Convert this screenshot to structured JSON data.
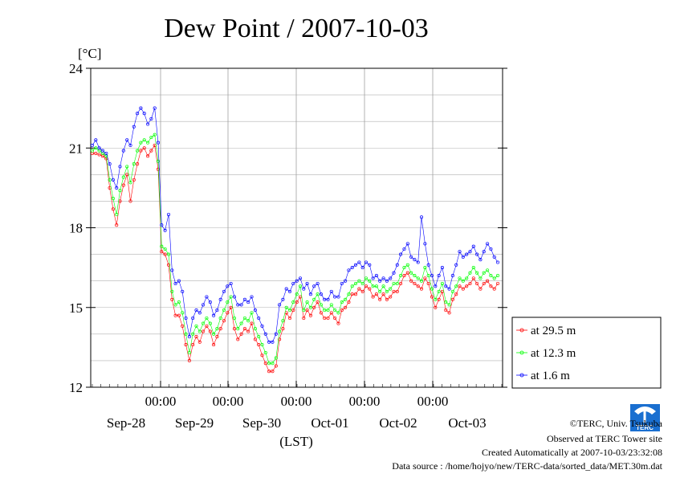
{
  "chart_data": {
    "type": "line",
    "title": "Dew Point / 2007-10-03",
    "ylabel": "[°C]",
    "xlabel": "(LST)",
    "ylim": [
      12,
      24
    ],
    "y_ticks": [
      12,
      15,
      18,
      21,
      24
    ],
    "x_time_labels": [
      "00:00",
      "00:00",
      "00:00",
      "00:00",
      "00:00"
    ],
    "x_date_labels": [
      "Sep-28",
      "Sep-29",
      "Sep-30",
      "Oct-01",
      "Oct-02",
      "Oct-03"
    ],
    "grid": true,
    "legend_placement": "right",
    "series": [
      {
        "name": "at 29.5 m",
        "color": "#ff0000",
        "values": [
          20.8,
          20.8,
          20.75,
          20.7,
          20.6,
          19.5,
          18.7,
          18.1,
          19.0,
          19.6,
          20.0,
          19.0,
          19.8,
          20.4,
          20.9,
          21.0,
          20.7,
          20.9,
          21.1,
          20.2,
          17.1,
          17.0,
          16.6,
          15.3,
          14.7,
          14.7,
          14.3,
          13.6,
          13.0,
          13.6,
          13.9,
          13.7,
          14.1,
          14.3,
          14.1,
          13.6,
          13.9,
          14.2,
          14.5,
          14.8,
          15.0,
          14.2,
          13.8,
          14.0,
          14.2,
          14.1,
          14.4,
          13.8,
          13.6,
          13.2,
          12.9,
          12.6,
          12.6,
          12.8,
          13.8,
          14.2,
          14.8,
          14.6,
          14.9,
          15.2,
          15.4,
          14.6,
          14.9,
          14.7,
          15.0,
          15.2,
          14.8,
          14.6,
          14.6,
          14.8,
          14.6,
          14.4,
          14.9,
          15.0,
          15.2,
          15.5,
          15.5,
          15.7,
          15.6,
          15.8,
          15.7,
          15.4,
          15.5,
          15.3,
          15.5,
          15.3,
          15.4,
          15.6,
          15.6,
          15.9,
          16.2,
          16.3,
          16.0,
          15.9,
          15.8,
          15.7,
          16.1,
          15.9,
          15.4,
          15.0,
          15.3,
          15.6,
          14.9,
          14.8,
          15.3,
          15.5,
          15.8,
          15.7,
          15.8,
          15.9,
          16.1,
          15.9,
          15.7,
          15.9,
          16.0,
          15.8,
          15.7,
          15.9
        ]
      },
      {
        "name": "at 12.3 m",
        "color": "#00ff00",
        "values": [
          20.9,
          21.0,
          20.9,
          20.8,
          20.7,
          19.8,
          19.1,
          18.5,
          19.4,
          19.9,
          20.3,
          19.7,
          20.4,
          20.9,
          21.2,
          21.3,
          21.2,
          21.4,
          21.5,
          20.5,
          17.3,
          17.2,
          17.0,
          15.6,
          15.1,
          15.2,
          14.8,
          14.0,
          13.3,
          14.0,
          14.3,
          14.1,
          14.4,
          14.6,
          14.4,
          14.0,
          14.2,
          14.6,
          14.9,
          15.2,
          15.4,
          14.6,
          14.2,
          14.4,
          14.6,
          14.5,
          14.8,
          14.2,
          13.9,
          13.6,
          13.3,
          12.9,
          12.9,
          13.1,
          14.1,
          14.5,
          15.0,
          14.9,
          15.2,
          15.5,
          15.8,
          14.9,
          15.2,
          15.0,
          15.3,
          15.5,
          15.1,
          14.9,
          14.9,
          15.1,
          14.9,
          14.8,
          15.2,
          15.3,
          15.5,
          15.8,
          15.9,
          16.0,
          15.9,
          16.1,
          16.0,
          15.8,
          15.8,
          15.6,
          15.8,
          15.6,
          15.7,
          15.9,
          15.9,
          16.2,
          16.5,
          16.6,
          16.3,
          16.2,
          16.1,
          16.0,
          16.5,
          16.2,
          15.7,
          15.3,
          15.6,
          15.9,
          15.2,
          15.1,
          15.6,
          15.8,
          16.1,
          16.0,
          16.1,
          16.3,
          16.5,
          16.3,
          16.1,
          16.3,
          16.4,
          16.2,
          16.1,
          16.2
        ]
      },
      {
        "name": "at 1.6 m",
        "color": "#0000ff",
        "values": [
          21.1,
          21.3,
          21.0,
          20.9,
          20.8,
          20.4,
          19.8,
          19.5,
          20.3,
          20.9,
          21.3,
          21.1,
          21.8,
          22.3,
          22.5,
          22.3,
          21.9,
          22.1,
          22.5,
          21.2,
          18.1,
          17.9,
          18.5,
          16.4,
          15.9,
          16.0,
          15.6,
          14.6,
          13.9,
          14.6,
          14.9,
          14.8,
          15.1,
          15.4,
          15.2,
          14.7,
          14.9,
          15.3,
          15.6,
          15.8,
          15.9,
          15.4,
          15.1,
          15.1,
          15.3,
          15.2,
          15.4,
          14.9,
          14.6,
          14.3,
          14.0,
          13.7,
          13.7,
          14.0,
          15.1,
          15.3,
          15.7,
          15.6,
          15.9,
          16.0,
          16.1,
          15.7,
          15.9,
          15.5,
          15.8,
          15.9,
          15.5,
          15.3,
          15.3,
          15.6,
          15.4,
          15.4,
          15.9,
          16.0,
          16.4,
          16.5,
          16.6,
          16.7,
          16.5,
          16.7,
          16.6,
          16.1,
          16.2,
          16.0,
          16.1,
          16.0,
          16.1,
          16.3,
          16.6,
          17.0,
          17.2,
          17.4,
          16.9,
          16.8,
          16.7,
          18.4,
          17.4,
          16.6,
          16.2,
          15.8,
          16.2,
          16.5,
          15.8,
          15.7,
          16.2,
          16.6,
          17.1,
          16.9,
          17.0,
          17.1,
          17.3,
          17.0,
          16.8,
          17.1,
          17.4,
          17.2,
          16.9,
          16.7
        ]
      }
    ]
  },
  "footer": {
    "copyright": "©TERC, Univ. Tsukuba",
    "observed": "Observed at TERC Tower site",
    "created": "Created Automatically at 2007-10-03/23:32:08",
    "source": "Data source : /home/hojyo/new/TERC-data/sorted_data/MET.30m.dat",
    "logo_text": "TERC"
  }
}
